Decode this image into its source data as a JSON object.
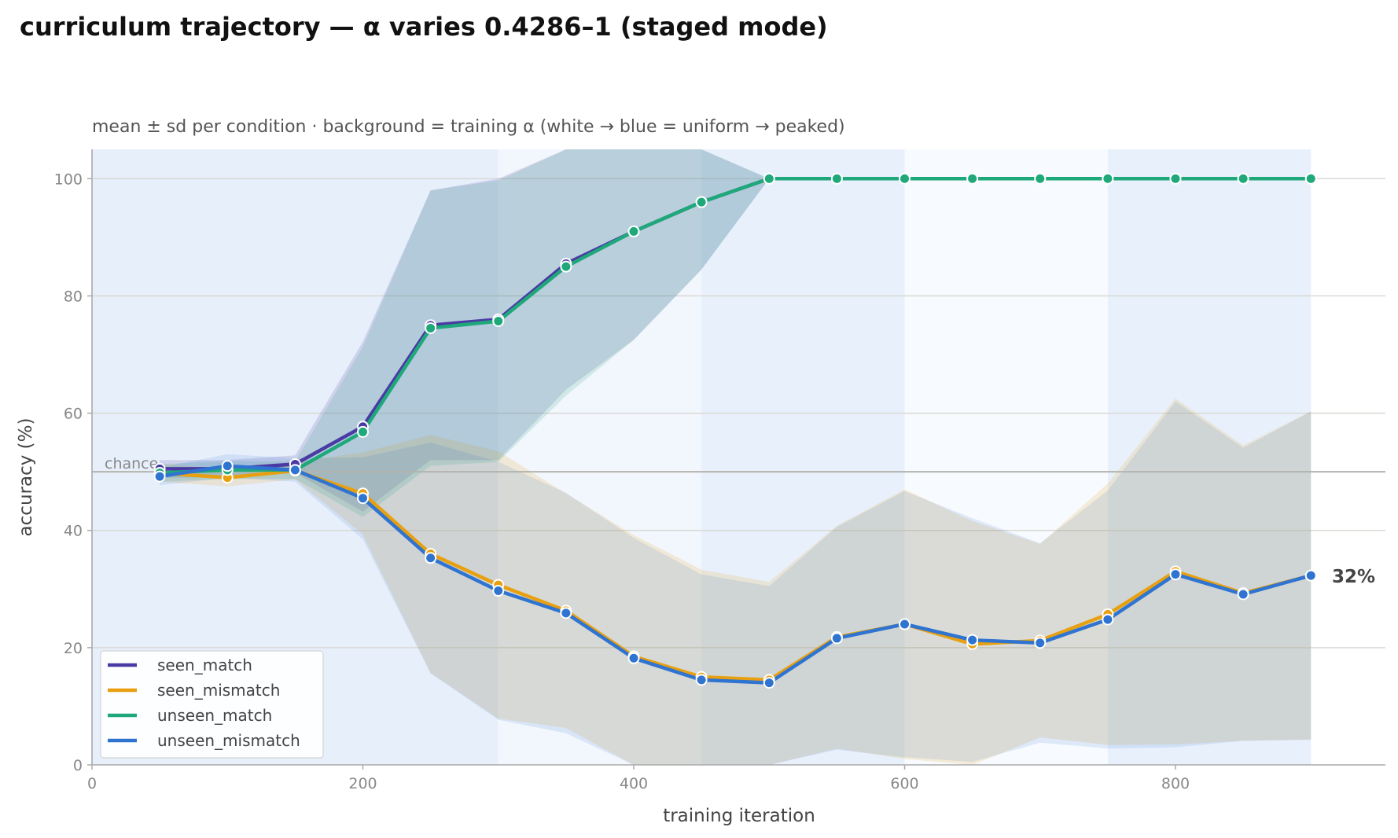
{
  "chart_data": {
    "type": "line",
    "title": "curriculum trajectory — α varies 0.4286–1 (staged mode)",
    "subtitle": "mean ± sd per condition · background = training α (white → blue = uniform → peaked)",
    "xlabel": "training iteration",
    "ylabel": "accuracy (%)",
    "xlim": [
      0,
      955
    ],
    "ylim": [
      0,
      105
    ],
    "x_ticks": [
      0,
      200,
      400,
      600,
      800
    ],
    "y_ticks": [
      0,
      20,
      40,
      60,
      80,
      100
    ],
    "grid": "horizontal",
    "legend_position": "bottom-left",
    "chance": {
      "value": 50,
      "label": "chance"
    },
    "end_label": "32%",
    "colors": {
      "seen_match": "#4a3aa4",
      "seen_mismatch": "#e8a010",
      "unseen_match": "#1fa87a",
      "unseen_mismatch": "#2f74d0"
    },
    "alpha_bands": [
      {
        "x0": 0,
        "x1": 300,
        "level": 0.9
      },
      {
        "x0": 300,
        "x1": 450,
        "level": 0.5
      },
      {
        "x0": 450,
        "x1": 600,
        "level": 0.85
      },
      {
        "x0": 600,
        "x1": 750,
        "level": 0.3
      },
      {
        "x0": 750,
        "x1": 900,
        "level": 0.85
      }
    ],
    "x": [
      50,
      100,
      150,
      200,
      250,
      300,
      350,
      400,
      450,
      500,
      550,
      600,
      650,
      700,
      750,
      800,
      850,
      900
    ],
    "series": [
      {
        "name": "seen_match",
        "values": [
          50.5,
          50.5,
          51.3,
          57.7,
          75.0,
          76.0,
          85.5,
          91.0,
          96.0,
          100,
          100,
          100,
          100,
          100,
          100,
          100,
          100,
          100
        ],
        "sd": [
          1.5,
          1.5,
          1.5,
          14.5,
          23.0,
          24.0,
          21.5,
          18.5,
          11.5,
          0,
          0,
          0,
          0,
          0,
          0,
          0,
          0,
          0
        ]
      },
      {
        "name": "seen_mismatch",
        "values": [
          49.8,
          49.0,
          50.2,
          46.3,
          36.0,
          30.7,
          26.3,
          18.5,
          15.0,
          14.5,
          21.8,
          24.0,
          20.6,
          21.2,
          25.7,
          33.0,
          29.3,
          32.3
        ],
        "sd": [
          1.5,
          1.5,
          1.5,
          7.0,
          20.3,
          22.8,
          20.0,
          20.7,
          18.3,
          16.7,
          19.0,
          23.0,
          21.0,
          16.5,
          22.3,
          29.5,
          25.2,
          28.0
        ]
      },
      {
        "name": "unseen_match",
        "values": [
          49.8,
          50.3,
          50.3,
          56.8,
          74.5,
          75.7,
          85.0,
          91.0,
          96.0,
          100,
          100,
          100,
          100,
          100,
          100,
          100,
          100,
          100
        ],
        "sd": [
          1.5,
          1.5,
          1.5,
          14.5,
          23.5,
          24.0,
          22.0,
          18.5,
          11.5,
          0,
          0,
          0,
          0,
          0,
          0,
          0,
          0,
          0
        ]
      },
      {
        "name": "unseen_mismatch",
        "values": [
          49.2,
          51.0,
          50.3,
          45.5,
          35.3,
          29.7,
          25.9,
          18.2,
          14.5,
          14.0,
          21.6,
          24.0,
          21.3,
          20.8,
          24.8,
          32.5,
          29.1,
          32.3
        ],
        "sd": [
          1.5,
          2.0,
          2.0,
          7.0,
          19.7,
          22.0,
          20.5,
          20.5,
          18.0,
          16.5,
          19.0,
          22.7,
          20.8,
          17.0,
          22.0,
          29.5,
          25.0,
          28.0
        ]
      }
    ]
  }
}
